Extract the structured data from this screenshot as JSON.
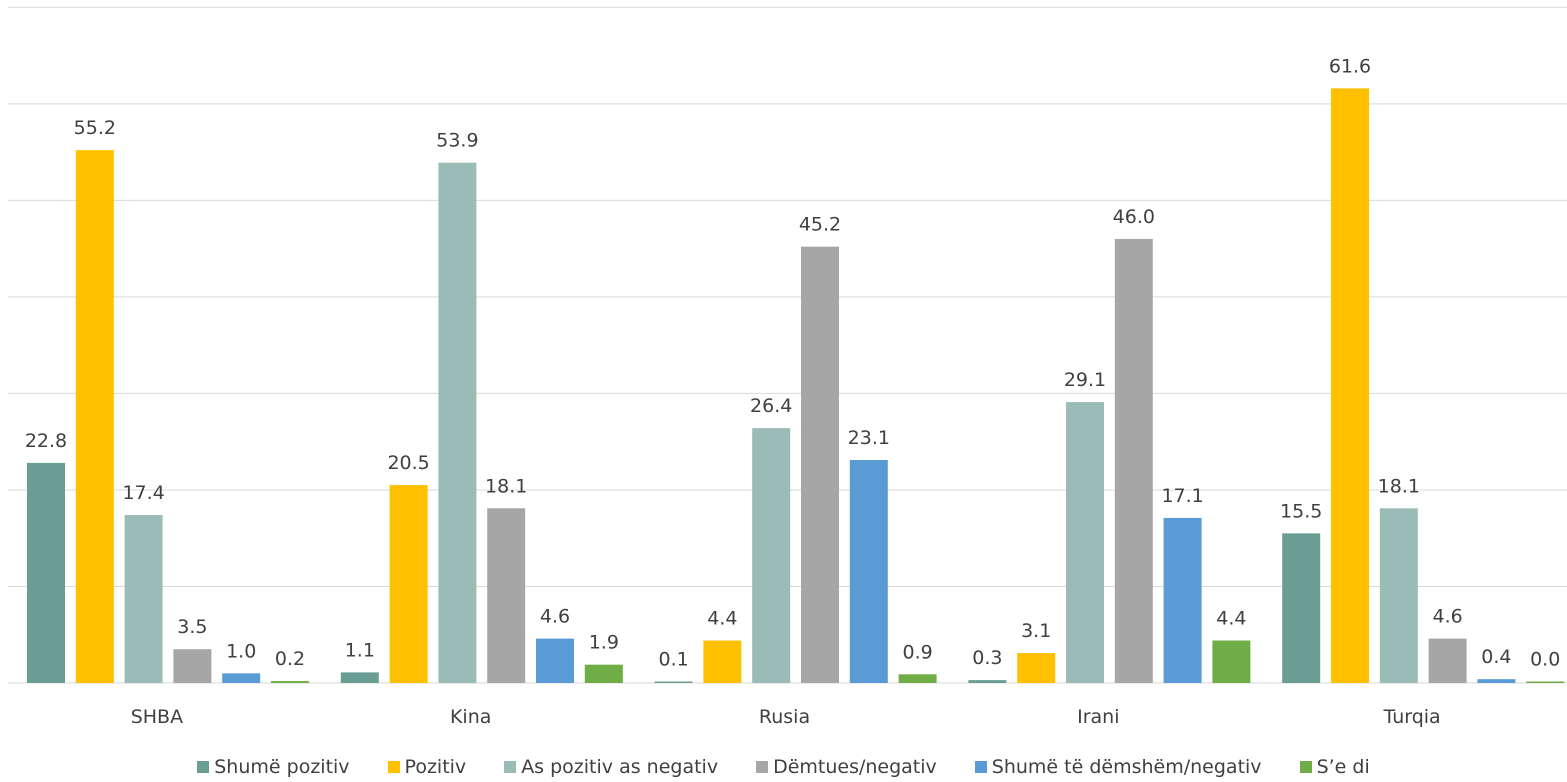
{
  "chart_data": {
    "type": "bar",
    "title": "",
    "xlabel": "",
    "ylabel": "",
    "ylim": [
      0,
      70
    ],
    "grid": true,
    "legend_position": "bottom",
    "categories": [
      "SHBA",
      "Kina",
      "Rusia",
      "Irani",
      "Turqia"
    ],
    "series": [
      {
        "name": "Shumë pozitiv",
        "color": "#6b9e93",
        "values": [
          22.8,
          1.1,
          0.1,
          0.3,
          15.5
        ],
        "labels": [
          "22.8",
          "1.1",
          "0.1",
          "0.3",
          "15.5"
        ]
      },
      {
        "name": "Pozitiv",
        "color": "#ffc000",
        "values": [
          55.2,
          20.5,
          4.4,
          3.1,
          61.6
        ],
        "labels": [
          "55.2",
          "20.5",
          "4.4",
          "3.1",
          "61.6"
        ]
      },
      {
        "name": "As pozitiv as negativ",
        "color": "#9bbcb6",
        "values": [
          17.4,
          53.9,
          26.4,
          29.1,
          18.1
        ],
        "labels": [
          "17.4",
          "53.9",
          "26.4",
          "29.1",
          "18.1"
        ]
      },
      {
        "name": "Dëmtues/negativ",
        "color": "#a6a6a6",
        "values": [
          3.5,
          18.1,
          45.2,
          46.0,
          4.6
        ],
        "labels": [
          "3.5",
          "18.1",
          "45.2",
          "46.0",
          "4.6"
        ]
      },
      {
        "name": "Shumë të dëmshëm/negativ",
        "color": "#5b9bd5",
        "values": [
          1.0,
          4.6,
          23.1,
          17.1,
          0.4
        ],
        "labels": [
          "1.0",
          "4.6",
          "23.1",
          "17.1",
          "0.4"
        ]
      },
      {
        "name": "S’e di",
        "color": "#70ad47",
        "values": [
          0.2,
          1.9,
          0.9,
          4.4,
          0.0
        ],
        "labels": [
          "0.2",
          "1.9",
          "0.9",
          "4.4",
          "0.0"
        ]
      }
    ]
  }
}
